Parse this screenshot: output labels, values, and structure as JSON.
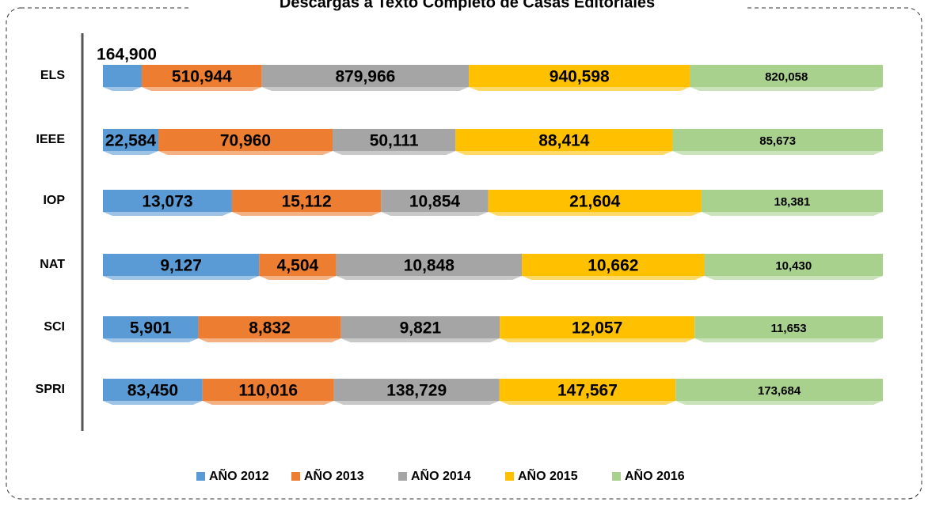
{
  "chart_data": {
    "type": "bar_stacked_percent",
    "title": "Descargas a Texto Completo de Casas Editoriales",
    "categories": [
      "ELS",
      "IEEE",
      "IOP",
      "NAT",
      "SCI",
      "SPRI"
    ],
    "series": [
      {
        "name": "AÑO 2012",
        "color": "#5b9bd5",
        "values": [
          164900,
          22584,
          13073,
          9127,
          5901,
          83450
        ],
        "value_labels": [
          "164,900",
          "22,584",
          "13,073",
          "9,127",
          "5,901",
          "83,450"
        ]
      },
      {
        "name": "AÑO 2013",
        "color": "#ed7d31",
        "values": [
          510944,
          70960,
          15112,
          4504,
          8832,
          110016
        ],
        "value_labels": [
          "510,944",
          "70,960",
          "15,112",
          "4,504",
          "8,832",
          "110,016"
        ]
      },
      {
        "name": "AÑO 2014",
        "color": "#a5a5a5",
        "values": [
          879966,
          50111,
          10854,
          10848,
          9821,
          138729
        ],
        "value_labels": [
          "879,966",
          "50,111",
          "10,854",
          "10,848",
          "9,821",
          "138,729"
        ]
      },
      {
        "name": "AÑO 2015",
        "color": "#ffc000",
        "values": [
          940598,
          88414,
          21604,
          10662,
          12057,
          147567
        ],
        "value_labels": [
          "940,598",
          "88,414",
          "21,604",
          "10,662",
          "12,057",
          "147,567"
        ]
      },
      {
        "name": "AÑO 2016",
        "color": "#a9d18e",
        "values": [
          820058,
          85673,
          18381,
          10430,
          11653,
          173684
        ],
        "value_labels": [
          "820,058",
          "85,673",
          "18,381",
          "10,430",
          "11,653",
          "173,684"
        ]
      }
    ],
    "legend": "bottom"
  }
}
